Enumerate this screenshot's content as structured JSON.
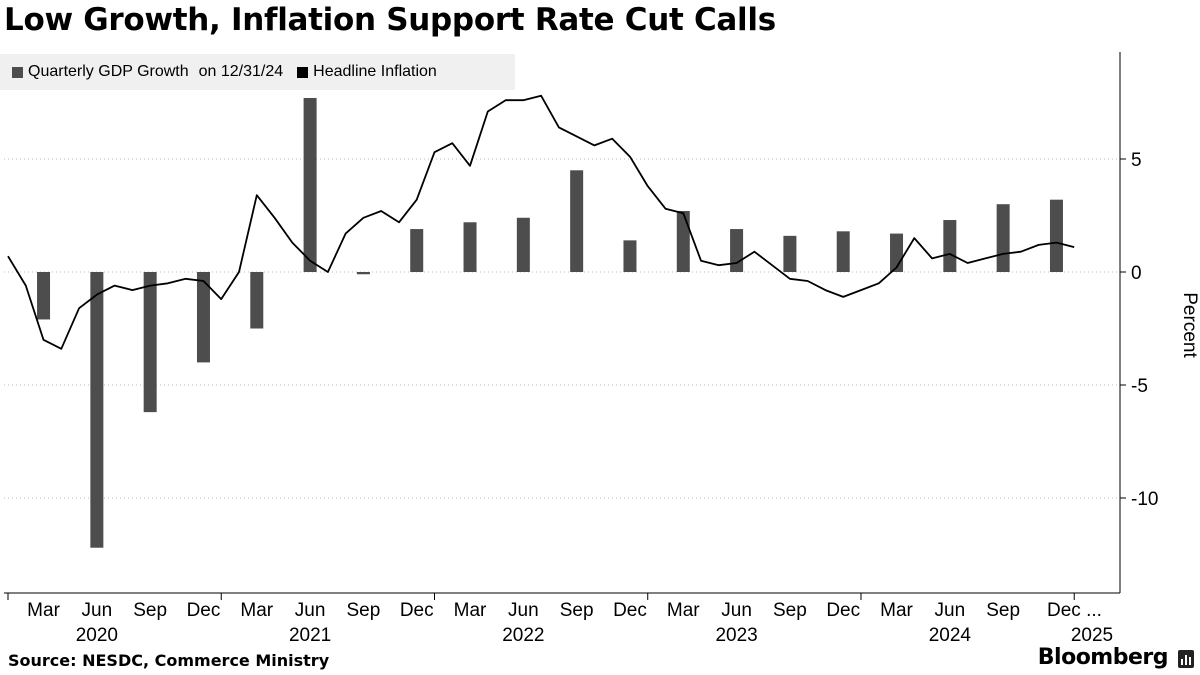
{
  "title": "Low Growth, Inflation Support Rate Cut Calls",
  "legend": {
    "gdp_label": "Quarterly GDP Growth",
    "gdp_note": "on 12/31/24",
    "inflation_label": "Headline Inflation"
  },
  "source": "Source: NESDC, Commerce Ministry",
  "brand": "Bloomberg",
  "colors": {
    "bar": "#4d4d4d",
    "line": "#000000",
    "grid": "#bbbbbb",
    "legend_bg": "#f0f0f0"
  },
  "chart_data": {
    "type": "bar+line",
    "title": "Low Growth, Inflation Support Rate Cut Calls",
    "ylabel": "Percent",
    "ylim": [
      -14,
      10
    ],
    "yticks": [
      5,
      0,
      -5,
      -10
    ],
    "ytick_labels": [
      "5",
      "0",
      "-5",
      "-10"
    ],
    "x_domain": [
      "2020-01",
      "2025-02"
    ],
    "x_tick_labels": [
      {
        "m": "2020-03",
        "label": "Mar"
      },
      {
        "m": "2020-06",
        "label": "Jun"
      },
      {
        "m": "2020-09",
        "label": "Sep"
      },
      {
        "m": "2020-12",
        "label": "Dec"
      },
      {
        "m": "2021-03",
        "label": "Mar"
      },
      {
        "m": "2021-06",
        "label": "Jun"
      },
      {
        "m": "2021-09",
        "label": "Sep"
      },
      {
        "m": "2021-12",
        "label": "Dec"
      },
      {
        "m": "2022-03",
        "label": "Mar"
      },
      {
        "m": "2022-06",
        "label": "Jun"
      },
      {
        "m": "2022-09",
        "label": "Sep"
      },
      {
        "m": "2022-12",
        "label": "Dec"
      },
      {
        "m": "2023-03",
        "label": "Mar"
      },
      {
        "m": "2023-06",
        "label": "Jun"
      },
      {
        "m": "2023-09",
        "label": "Sep"
      },
      {
        "m": "2023-12",
        "label": "Dec"
      },
      {
        "m": "2024-03",
        "label": "Mar"
      },
      {
        "m": "2024-06",
        "label": "Jun"
      },
      {
        "m": "2024-09",
        "label": "Sep"
      },
      {
        "m": "2024-12",
        "label": "Dec ..."
      }
    ],
    "year_labels": [
      {
        "m": "2020-06",
        "label": "2020"
      },
      {
        "m": "2021-06",
        "label": "2021"
      },
      {
        "m": "2022-06",
        "label": "2022"
      },
      {
        "m": "2023-06",
        "label": "2023"
      },
      {
        "m": "2024-06",
        "label": "2024"
      },
      {
        "m": "2025-02",
        "label": "2025"
      }
    ],
    "series": [
      {
        "name": "Quarterly GDP Growth",
        "type": "bar",
        "points": [
          {
            "m": "2020-03",
            "v": -2.1
          },
          {
            "m": "2020-06",
            "v": -12.2
          },
          {
            "m": "2020-09",
            "v": -6.2
          },
          {
            "m": "2020-12",
            "v": -4.0
          },
          {
            "m": "2021-03",
            "v": -2.5
          },
          {
            "m": "2021-06",
            "v": 7.7
          },
          {
            "m": "2021-09",
            "v": -0.1
          },
          {
            "m": "2021-12",
            "v": 1.9
          },
          {
            "m": "2022-03",
            "v": 2.2
          },
          {
            "m": "2022-06",
            "v": 2.4
          },
          {
            "m": "2022-09",
            "v": 4.5
          },
          {
            "m": "2022-12",
            "v": 1.4
          },
          {
            "m": "2023-03",
            "v": 2.7
          },
          {
            "m": "2023-06",
            "v": 1.9
          },
          {
            "m": "2023-09",
            "v": 1.6
          },
          {
            "m": "2023-12",
            "v": 1.8
          },
          {
            "m": "2024-03",
            "v": 1.7
          },
          {
            "m": "2024-06",
            "v": 2.3
          },
          {
            "m": "2024-09",
            "v": 3.0
          },
          {
            "m": "2024-12",
            "v": 3.2
          }
        ]
      },
      {
        "name": "Headline Inflation",
        "type": "line",
        "points": [
          {
            "m": "2020-01",
            "v": 0.7
          },
          {
            "m": "2020-02",
            "v": -0.6
          },
          {
            "m": "2020-03",
            "v": -3.0
          },
          {
            "m": "2020-04",
            "v": -3.4
          },
          {
            "m": "2020-05",
            "v": -1.6
          },
          {
            "m": "2020-06",
            "v": -1.0
          },
          {
            "m": "2020-07",
            "v": -0.6
          },
          {
            "m": "2020-08",
            "v": -0.8
          },
          {
            "m": "2020-09",
            "v": -0.6
          },
          {
            "m": "2020-10",
            "v": -0.5
          },
          {
            "m": "2020-11",
            "v": -0.3
          },
          {
            "m": "2020-12",
            "v": -0.4
          },
          {
            "m": "2021-01",
            "v": -1.2
          },
          {
            "m": "2021-02",
            "v": 0.0
          },
          {
            "m": "2021-03",
            "v": 3.4
          },
          {
            "m": "2021-04",
            "v": 2.4
          },
          {
            "m": "2021-05",
            "v": 1.3
          },
          {
            "m": "2021-06",
            "v": 0.5
          },
          {
            "m": "2021-07",
            "v": 0.0
          },
          {
            "m": "2021-08",
            "v": 1.7
          },
          {
            "m": "2021-09",
            "v": 2.4
          },
          {
            "m": "2021-10",
            "v": 2.7
          },
          {
            "m": "2021-11",
            "v": 2.2
          },
          {
            "m": "2021-12",
            "v": 3.2
          },
          {
            "m": "2022-01",
            "v": 5.3
          },
          {
            "m": "2022-02",
            "v": 5.7
          },
          {
            "m": "2022-03",
            "v": 4.7
          },
          {
            "m": "2022-04",
            "v": 7.1
          },
          {
            "m": "2022-05",
            "v": 7.6
          },
          {
            "m": "2022-06",
            "v": 7.6
          },
          {
            "m": "2022-07",
            "v": 7.8
          },
          {
            "m": "2022-08",
            "v": 6.4
          },
          {
            "m": "2022-09",
            "v": 6.0
          },
          {
            "m": "2022-10",
            "v": 5.6
          },
          {
            "m": "2022-11",
            "v": 5.9
          },
          {
            "m": "2022-12",
            "v": 5.1
          },
          {
            "m": "2023-01",
            "v": 3.8
          },
          {
            "m": "2023-02",
            "v": 2.8
          },
          {
            "m": "2023-03",
            "v": 2.6
          },
          {
            "m": "2023-04",
            "v": 0.5
          },
          {
            "m": "2023-05",
            "v": 0.3
          },
          {
            "m": "2023-06",
            "v": 0.4
          },
          {
            "m": "2023-07",
            "v": 0.9
          },
          {
            "m": "2023-08",
            "v": 0.3
          },
          {
            "m": "2023-09",
            "v": -0.3
          },
          {
            "m": "2023-10",
            "v": -0.4
          },
          {
            "m": "2023-11",
            "v": -0.8
          },
          {
            "m": "2023-12",
            "v": -1.1
          },
          {
            "m": "2024-01",
            "v": -0.8
          },
          {
            "m": "2024-02",
            "v": -0.5
          },
          {
            "m": "2024-03",
            "v": 0.2
          },
          {
            "m": "2024-04",
            "v": 1.5
          },
          {
            "m": "2024-05",
            "v": 0.6
          },
          {
            "m": "2024-06",
            "v": 0.8
          },
          {
            "m": "2024-07",
            "v": 0.4
          },
          {
            "m": "2024-08",
            "v": 0.6
          },
          {
            "m": "2024-09",
            "v": 0.8
          },
          {
            "m": "2024-10",
            "v": 0.9
          },
          {
            "m": "2024-11",
            "v": 1.2
          },
          {
            "m": "2024-12",
            "v": 1.3
          },
          {
            "m": "2025-01",
            "v": 1.1
          }
        ]
      }
    ]
  }
}
